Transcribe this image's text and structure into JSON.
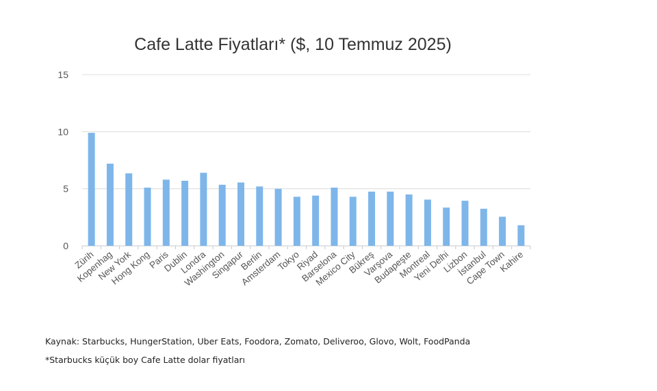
{
  "chart_data": {
    "type": "bar",
    "title": "Cafe Latte Fiyatları* ($, 10 Temmuz 2025)",
    "categories": [
      "Zürih",
      "Kopenhag",
      "New York",
      "Hong Kong",
      "Paris",
      "Dublin",
      "Londra",
      "Washington",
      "Singapur",
      "Berlin",
      "Amsterdam",
      "Tokyo",
      "Riyad",
      "Barselona",
      "Mexico City",
      "Bükreş",
      "Varşova",
      "Budapeşte",
      "Montreal",
      "Yeni Delhi",
      "Lizbon",
      "İstanbul",
      "Cape Town",
      "Kahire"
    ],
    "values": [
      9.9,
      7.2,
      6.35,
      5.1,
      5.8,
      5.7,
      6.4,
      5.35,
      5.55,
      5.2,
      5.0,
      4.3,
      4.4,
      5.1,
      4.3,
      4.75,
      4.75,
      4.5,
      4.05,
      3.35,
      3.95,
      3.25,
      2.55,
      1.8
    ],
    "ylim": [
      0,
      15
    ],
    "yticks": [
      0,
      5,
      10,
      15
    ],
    "grid": true,
    "bar_color": "#7EB6EA"
  },
  "footnotes": {
    "source": "Kaynak: Starbucks, HungerStation, Uber Eats, Foodora, Zomato, Deliveroo, Glovo, Wolt, FoodPanda",
    "note": "*Starbucks küçük boy Cafe Latte dolar fiyatları"
  }
}
